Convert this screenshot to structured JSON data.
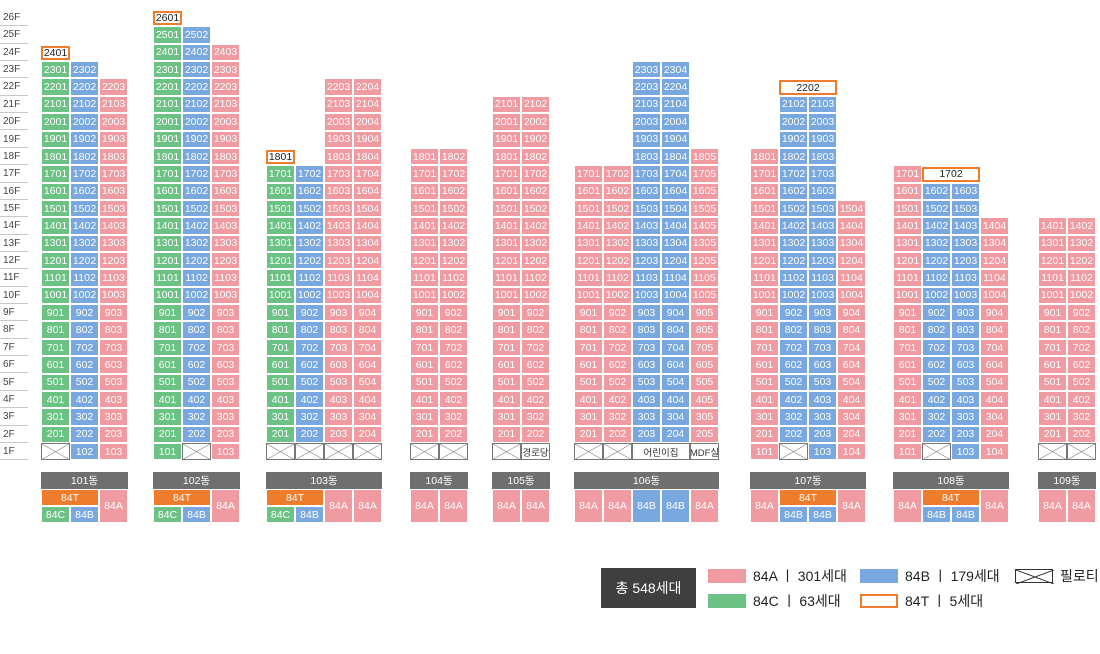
{
  "floors": [
    "26F",
    "25F",
    "24F",
    "23F",
    "22F",
    "21F",
    "20F",
    "19F",
    "18F",
    "17F",
    "16F",
    "15F",
    "14F",
    "13F",
    "12F",
    "11F",
    "10F",
    "9F",
    "8F",
    "7F",
    "6F",
    "5F",
    "4F",
    "3F",
    "2F",
    "1F"
  ],
  "colors": {
    "84A": "#f09aa1",
    "84B": "#78a8df",
    "84C": "#6cc284",
    "84T": "#ee7c2b",
    "label_bg": "#6f6f6f",
    "badge_bg": "#3f3f3f"
  },
  "buildings": [
    {
      "name": "101동",
      "label": "101동",
      "cols": [
        {
          "line": 1,
          "type": "84C",
          "max": 23,
          "top": {
            "floor": 24,
            "text": "2401"
          },
          "ground": "P"
        },
        {
          "line": 2,
          "type": "84B",
          "max": 23,
          "ground": "102"
        },
        {
          "line": 3,
          "type": "84A",
          "max": 22,
          "ground": "103"
        }
      ],
      "bottom": [
        {
          "t": "84T",
          "span": 2
        },
        {
          "t": "84A",
          "span": 1,
          "tall": true
        }
      ],
      "bottom2": [
        {
          "t": "84C"
        },
        {
          "t": "84B"
        }
      ]
    },
    {
      "name": "102동",
      "label": "102동",
      "cols": [
        {
          "line": 1,
          "type": "84C",
          "max": 25,
          "top": {
            "floor": 26,
            "text": "2601"
          },
          "ground": "101"
        },
        {
          "line": 2,
          "type": "84B",
          "max": 25,
          "ground": "P"
        },
        {
          "line": 3,
          "type": "84A",
          "max": 24,
          "ground": "103"
        }
      ],
      "bottom": [
        {
          "t": "84T",
          "span": 2
        },
        {
          "t": "84A",
          "span": 1,
          "tall": true
        }
      ],
      "bottom2": [
        {
          "t": "84C"
        },
        {
          "t": "84B"
        }
      ]
    },
    {
      "name": "103동",
      "label": "103동",
      "cols": [
        {
          "line": 1,
          "type": "84C",
          "max": 17,
          "top": {
            "floor": 18,
            "text": "1801"
          },
          "ground": "P"
        },
        {
          "line": 2,
          "type": "84B",
          "max": 17,
          "ground": "P"
        },
        {
          "line": 3,
          "type": "84A",
          "max": 22,
          "ground": "P"
        },
        {
          "line": 4,
          "type": "84A",
          "max": 22,
          "ground": "P"
        }
      ],
      "bottom": [
        {
          "t": "84T",
          "span": 2
        },
        {
          "t": "84A",
          "span": 1,
          "tall": true
        },
        {
          "t": "84A",
          "span": 1,
          "tall": true
        }
      ],
      "bottom2": [
        {
          "t": "84C"
        },
        {
          "t": "84B"
        }
      ]
    },
    {
      "name": "104동",
      "label": "104동",
      "cols": [
        {
          "line": 1,
          "type": "84A",
          "max": 18,
          "ground": "P"
        },
        {
          "line": 2,
          "type": "84A",
          "max": 18,
          "ground": "P"
        }
      ],
      "bottom": [
        {
          "t": "84A",
          "span": 1,
          "tall": true
        },
        {
          "t": "84A",
          "span": 1,
          "tall": true
        }
      ]
    },
    {
      "name": "105동",
      "label": "105동",
      "cols": [
        {
          "line": 1,
          "type": "84A",
          "max": 21,
          "ground": "P"
        },
        {
          "line": 2,
          "type": "84A",
          "max": 21,
          "ground": "경로당"
        }
      ],
      "bottom": [
        {
          "t": "84A",
          "span": 1,
          "tall": true
        },
        {
          "t": "84A",
          "span": 1,
          "tall": true
        }
      ]
    },
    {
      "name": "106동",
      "label": "106동",
      "cols": [
        {
          "line": 1,
          "type": "84A",
          "max": 17,
          "ground": "P"
        },
        {
          "line": 2,
          "type": "84A",
          "max": 17,
          "ground": "P"
        },
        {
          "line": 3,
          "type": "84B",
          "max": 23,
          "ground": "어린이집",
          "gspan": 2
        },
        {
          "line": 4,
          "type": "84B",
          "max": 23,
          "ground": "SKIP"
        },
        {
          "line": 5,
          "type": "84A",
          "max": 18,
          "ground": "MDF실"
        }
      ],
      "bottom": [
        {
          "t": "84A",
          "span": 1,
          "tall": true
        },
        {
          "t": "84A",
          "span": 1,
          "tall": true
        },
        {
          "t": "84B",
          "span": 1,
          "tall": true
        },
        {
          "t": "84B",
          "span": 1,
          "tall": true
        },
        {
          "t": "84A",
          "span": 1,
          "tall": true
        }
      ]
    },
    {
      "name": "107동",
      "label": "107동",
      "cols": [
        {
          "line": 1,
          "type": "84A",
          "max": 18,
          "ground": "101"
        },
        {
          "line": 2,
          "type": "84B",
          "max": 21,
          "top": {
            "floor": 22,
            "text": "2202",
            "span": 2
          },
          "ground": "P"
        },
        {
          "line": 3,
          "type": "84B",
          "max": 21,
          "ground": "103"
        },
        {
          "line": 4,
          "type": "84A",
          "max": 15,
          "ground": "104"
        }
      ],
      "bottom": [
        {
          "t": "84A",
          "span": 1,
          "tall": true
        },
        {
          "t": "84T",
          "span": 2
        },
        {
          "t": "84A",
          "span": 1,
          "tall": true
        }
      ],
      "bottom2": [
        {
          "t": "84B"
        },
        {
          "t": "84B"
        }
      ]
    },
    {
      "name": "108동",
      "label": "108동",
      "cols": [
        {
          "line": 1,
          "type": "84A",
          "max": 17,
          "ground": "101"
        },
        {
          "line": 2,
          "type": "84B",
          "max": 16,
          "top": {
            "floor": 17,
            "text": "1702",
            "span": 2
          },
          "ground": "P"
        },
        {
          "line": 3,
          "type": "84B",
          "max": 16,
          "ground": "103"
        },
        {
          "line": 4,
          "type": "84A",
          "max": 14,
          "ground": "104"
        }
      ],
      "bottom": [
        {
          "t": "84A",
          "span": 1,
          "tall": true
        },
        {
          "t": "84T",
          "span": 2
        },
        {
          "t": "84A",
          "span": 1,
          "tall": true
        }
      ],
      "bottom2": [
        {
          "t": "84B"
        },
        {
          "t": "84B"
        }
      ]
    },
    {
      "name": "109동",
      "label": "109동",
      "cols": [
        {
          "line": 1,
          "type": "84A",
          "max": 14,
          "ground": "P"
        },
        {
          "line": 2,
          "type": "84A",
          "max": 14,
          "ground": "P"
        }
      ],
      "bottom": [
        {
          "t": "84A",
          "span": 1,
          "tall": true
        },
        {
          "t": "84A",
          "span": 1,
          "tall": true
        }
      ]
    }
  ],
  "legend": {
    "total": "총 548세대",
    "items": [
      {
        "type": "84A",
        "text": "84A ㅣ 301세대"
      },
      {
        "type": "84B",
        "text": "84B ㅣ 179세대"
      },
      {
        "type": "pilotis",
        "text": "필로티"
      },
      {
        "type": "84C",
        "text": "84C ㅣ   63세대"
      },
      {
        "type": "84T",
        "text": "84T ㅣ     5세대"
      }
    ]
  }
}
